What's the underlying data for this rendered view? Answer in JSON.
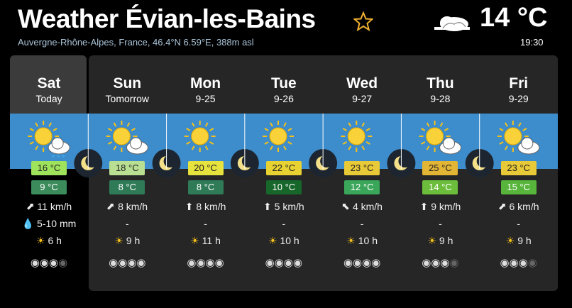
{
  "header": {
    "title": "Weather Évian-les-Bains",
    "location": "Auvergne-Rhône-Alpes, France, 46.4°N 6.59°E, 388m asl",
    "current_temp": "14 °C",
    "time": "19:30"
  },
  "days": [
    {
      "name": "Sat",
      "sub": "Today",
      "high": "16 °C",
      "low": "9 °C",
      "wind": "11 km/h",
      "precip": "5-10 mm",
      "sun": "6 h"
    },
    {
      "name": "Sun",
      "sub": "Tomorrow",
      "high": "18 °C",
      "low": "8 °C",
      "wind": "8 km/h",
      "precip": "-",
      "sun": "9 h"
    },
    {
      "name": "Mon",
      "sub": "9-25",
      "high": "20 °C",
      "low": "8 °C",
      "wind": "8 km/h",
      "precip": "-",
      "sun": "11 h"
    },
    {
      "name": "Tue",
      "sub": "9-26",
      "high": "22 °C",
      "low": "10 °C",
      "wind": "5 km/h",
      "precip": "-",
      "sun": "10 h"
    },
    {
      "name": "Wed",
      "sub": "9-27",
      "high": "23 °C",
      "low": "12 °C",
      "wind": "4 km/h",
      "precip": "-",
      "sun": "10 h"
    },
    {
      "name": "Thu",
      "sub": "9-28",
      "high": "25 °C",
      "low": "14 °C",
      "wind": "9 km/h",
      "precip": "-",
      "sun": "9 h"
    },
    {
      "name": "Fri",
      "sub": "9-29",
      "high": "23 °C",
      "low": "15 °C",
      "wind": "6 km/h",
      "precip": "-",
      "sun": "9 h"
    }
  ]
}
